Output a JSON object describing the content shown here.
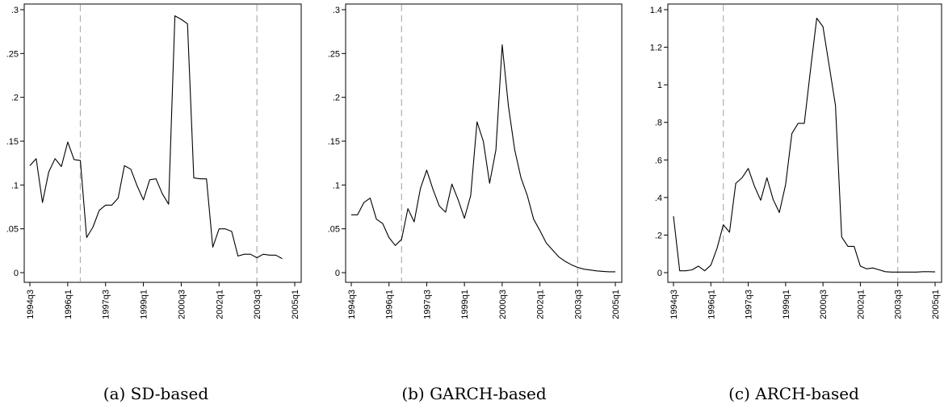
{
  "figure": {
    "captions": [
      "(a) SD-based",
      "(b) GARCH-based",
      "(c) ARCH-based"
    ]
  },
  "chart_data": [
    {
      "type": "line",
      "title": "",
      "caption": "(a) SD-based",
      "xlabel": "",
      "ylabel": "",
      "x_ticks": [
        "1994q3",
        "1996q1",
        "1997q3",
        "1999q1",
        "2000q3",
        "2002q1",
        "2003q3",
        "2005q1"
      ],
      "y_ticks": [
        {
          "value": 0,
          "label": "0"
        },
        {
          "value": 0.05,
          "label": ".05"
        },
        {
          "value": 0.1,
          "label": ".1"
        },
        {
          "value": 0.15,
          "label": ".15"
        },
        {
          "value": 0.2,
          "label": ".2"
        },
        {
          "value": 0.25,
          "label": ".25"
        },
        {
          "value": 0.3,
          "label": ".3"
        }
      ],
      "ylim": [
        0,
        0.3
      ],
      "xlim": [
        "1994q3",
        "2005q1"
      ],
      "vlines": [
        "1996q3",
        "2003q3"
      ],
      "x_start": "1994q3",
      "series": [
        {
          "values": [
            0.122,
            0.13,
            0.08,
            0.115,
            0.13,
            0.121,
            0.149,
            0.129,
            0.128,
            0.04,
            0.052,
            0.071,
            0.077,
            0.077,
            0.085,
            0.122,
            0.118,
            0.099,
            0.083,
            0.106,
            0.107,
            0.09,
            0.078,
            0.293,
            0.289,
            0.284,
            0.108,
            0.107,
            0.107,
            0.029,
            0.05,
            0.05,
            0.047,
            0.019,
            0.021,
            0.021,
            0.017,
            0.021,
            0.02,
            0.02,
            0.016
          ]
        }
      ]
    },
    {
      "type": "line",
      "title": "",
      "caption": "(b) GARCH-based",
      "xlabel": "",
      "ylabel": "",
      "x_ticks": [
        "1994q3",
        "1996q1",
        "1997q3",
        "1999q1",
        "2000q3",
        "2002q1",
        "2003q3",
        "2005q1"
      ],
      "y_ticks": [
        {
          "value": 0,
          "label": "0"
        },
        {
          "value": 0.05,
          "label": ".05"
        },
        {
          "value": 0.1,
          "label": ".1"
        },
        {
          "value": 0.15,
          "label": ".15"
        },
        {
          "value": 0.2,
          "label": ".2"
        },
        {
          "value": 0.25,
          "label": ".25"
        },
        {
          "value": 0.3,
          "label": ".3"
        }
      ],
      "ylim": [
        0,
        0.3
      ],
      "xlim": [
        "1994q3",
        "2005q1"
      ],
      "vlines": [
        "1996q3",
        "2003q3"
      ],
      "x_start": "1994q3",
      "series": [
        {
          "values": [
            0.066,
            0.066,
            0.08,
            0.085,
            0.061,
            0.056,
            0.04,
            0.031,
            0.038,
            0.073,
            0.058,
            0.096,
            0.117,
            0.095,
            0.076,
            0.069,
            0.101,
            0.083,
            0.062,
            0.088,
            0.172,
            0.15,
            0.102,
            0.14,
            0.26,
            0.19,
            0.14,
            0.108,
            0.088,
            0.061,
            0.048,
            0.034,
            0.026,
            0.018,
            0.013,
            0.009,
            0.006,
            0.004,
            0.003,
            0.002,
            0.0015,
            0.001,
            0.001
          ]
        }
      ]
    },
    {
      "type": "line",
      "title": "",
      "caption": "(c) ARCH-based",
      "xlabel": "",
      "ylabel": "",
      "x_ticks": [
        "1994q3",
        "1996q1",
        "1997q3",
        "1999q1",
        "2000q3",
        "2002q1",
        "2003q3",
        "2005q1"
      ],
      "y_ticks": [
        {
          "value": 0,
          "label": "0"
        },
        {
          "value": 0.2,
          "label": ".2"
        },
        {
          "value": 0.4,
          "label": ".4"
        },
        {
          "value": 0.6,
          "label": ".6"
        },
        {
          "value": 0.8,
          "label": ".8"
        },
        {
          "value": 1.0,
          "label": "1"
        },
        {
          "value": 1.2,
          "label": "1.2"
        },
        {
          "value": 1.4,
          "label": "1.4"
        }
      ],
      "ylim": [
        0,
        1.4
      ],
      "xlim": [
        "1994q3",
        "2005q1"
      ],
      "vlines": [
        "1996q3",
        "2003q3"
      ],
      "x_start": "1994q3",
      "series": [
        {
          "values": [
            0.3,
            0.01,
            0.01,
            0.015,
            0.035,
            0.01,
            0.04,
            0.13,
            0.255,
            0.215,
            0.475,
            0.505,
            0.555,
            0.46,
            0.385,
            0.505,
            0.39,
            0.32,
            0.47,
            0.74,
            0.795,
            0.795,
            1.08,
            1.355,
            1.31,
            1.1,
            0.89,
            0.19,
            0.14,
            0.14,
            0.035,
            0.02,
            0.025,
            0.015,
            0.005,
            0.003,
            0.003,
            0.003,
            0.003,
            0.003,
            0.005,
            0.005,
            0.004
          ]
        }
      ]
    }
  ]
}
